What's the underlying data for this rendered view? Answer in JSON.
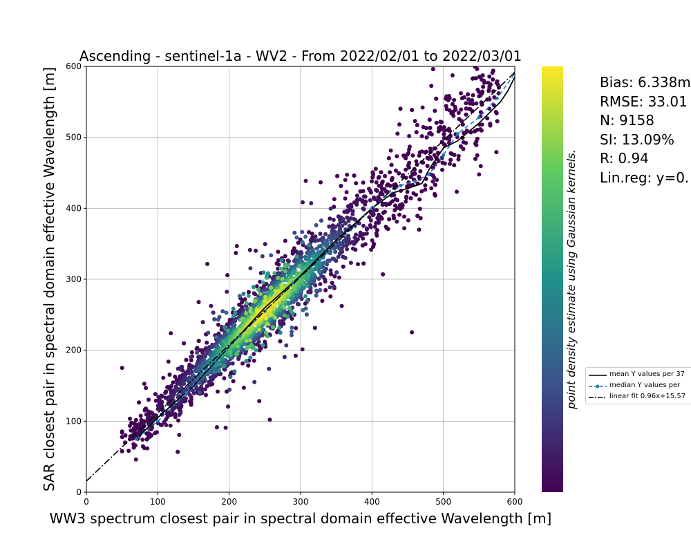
{
  "chart_data": {
    "type": "scatter",
    "title": "Ascending - sentinel-1a - WV2 - From 2022/02/01 to 2022/03/01",
    "xlabel": "WW3 spectrum closest pair in spectral domain effective Wavelength [m]",
    "ylabel": "SAR closest pair in spectral domain effective Wavelength [m]",
    "xlim": [
      0,
      600
    ],
    "ylim": [
      0,
      600
    ],
    "xticks": [
      0,
      100,
      200,
      300,
      400,
      500,
      600
    ],
    "yticks": [
      0,
      100,
      200,
      300,
      400,
      500,
      600
    ],
    "grid": true,
    "colorbar_label": "point density estimate using Gaussian kernels.",
    "colormap": [
      "#440154",
      "#3b528b",
      "#21918c",
      "#5ec962",
      "#fde725"
    ],
    "stats": [
      "Bias: 6.338m",
      "RMSE: 33.01",
      "N: 9158",
      "SI: 13.09%",
      "R: 0.94",
      "Lin.reg: y=0."
    ],
    "legend_placement": "right, outside plot",
    "series": [
      {
        "name": "mean Y values per 37",
        "style": "solid black line",
        "color": "#000000",
        "x": [
          70,
          100,
          150,
          200,
          250,
          300,
          350,
          400,
          430,
          450,
          470,
          480,
          500,
          520,
          550,
          580,
          590,
          600
        ],
        "y": [
          75,
          105,
          150,
          205,
          260,
          305,
          355,
          400,
          422,
          428,
          435,
          455,
          485,
          495,
          520,
          550,
          565,
          585
        ]
      },
      {
        "name": "median Y values per",
        "style": "dashed blue line with dot markers",
        "color": "#1f77b4",
        "x": [
          70,
          100,
          140,
          180,
          215,
          250,
          290,
          330,
          370,
          400,
          440,
          460,
          480,
          500,
          520,
          550,
          575,
          600
        ],
        "y": [
          75,
          100,
          140,
          185,
          220,
          255,
          295,
          330,
          370,
          400,
          432,
          438,
          448,
          475,
          505,
          528,
          555,
          590
        ]
      },
      {
        "name": "linear fit 0.96x+15.57",
        "style": "dash-dot black line",
        "color": "#000000",
        "x": [
          0,
          600
        ],
        "y": [
          15.57,
          591.57
        ]
      }
    ]
  }
}
